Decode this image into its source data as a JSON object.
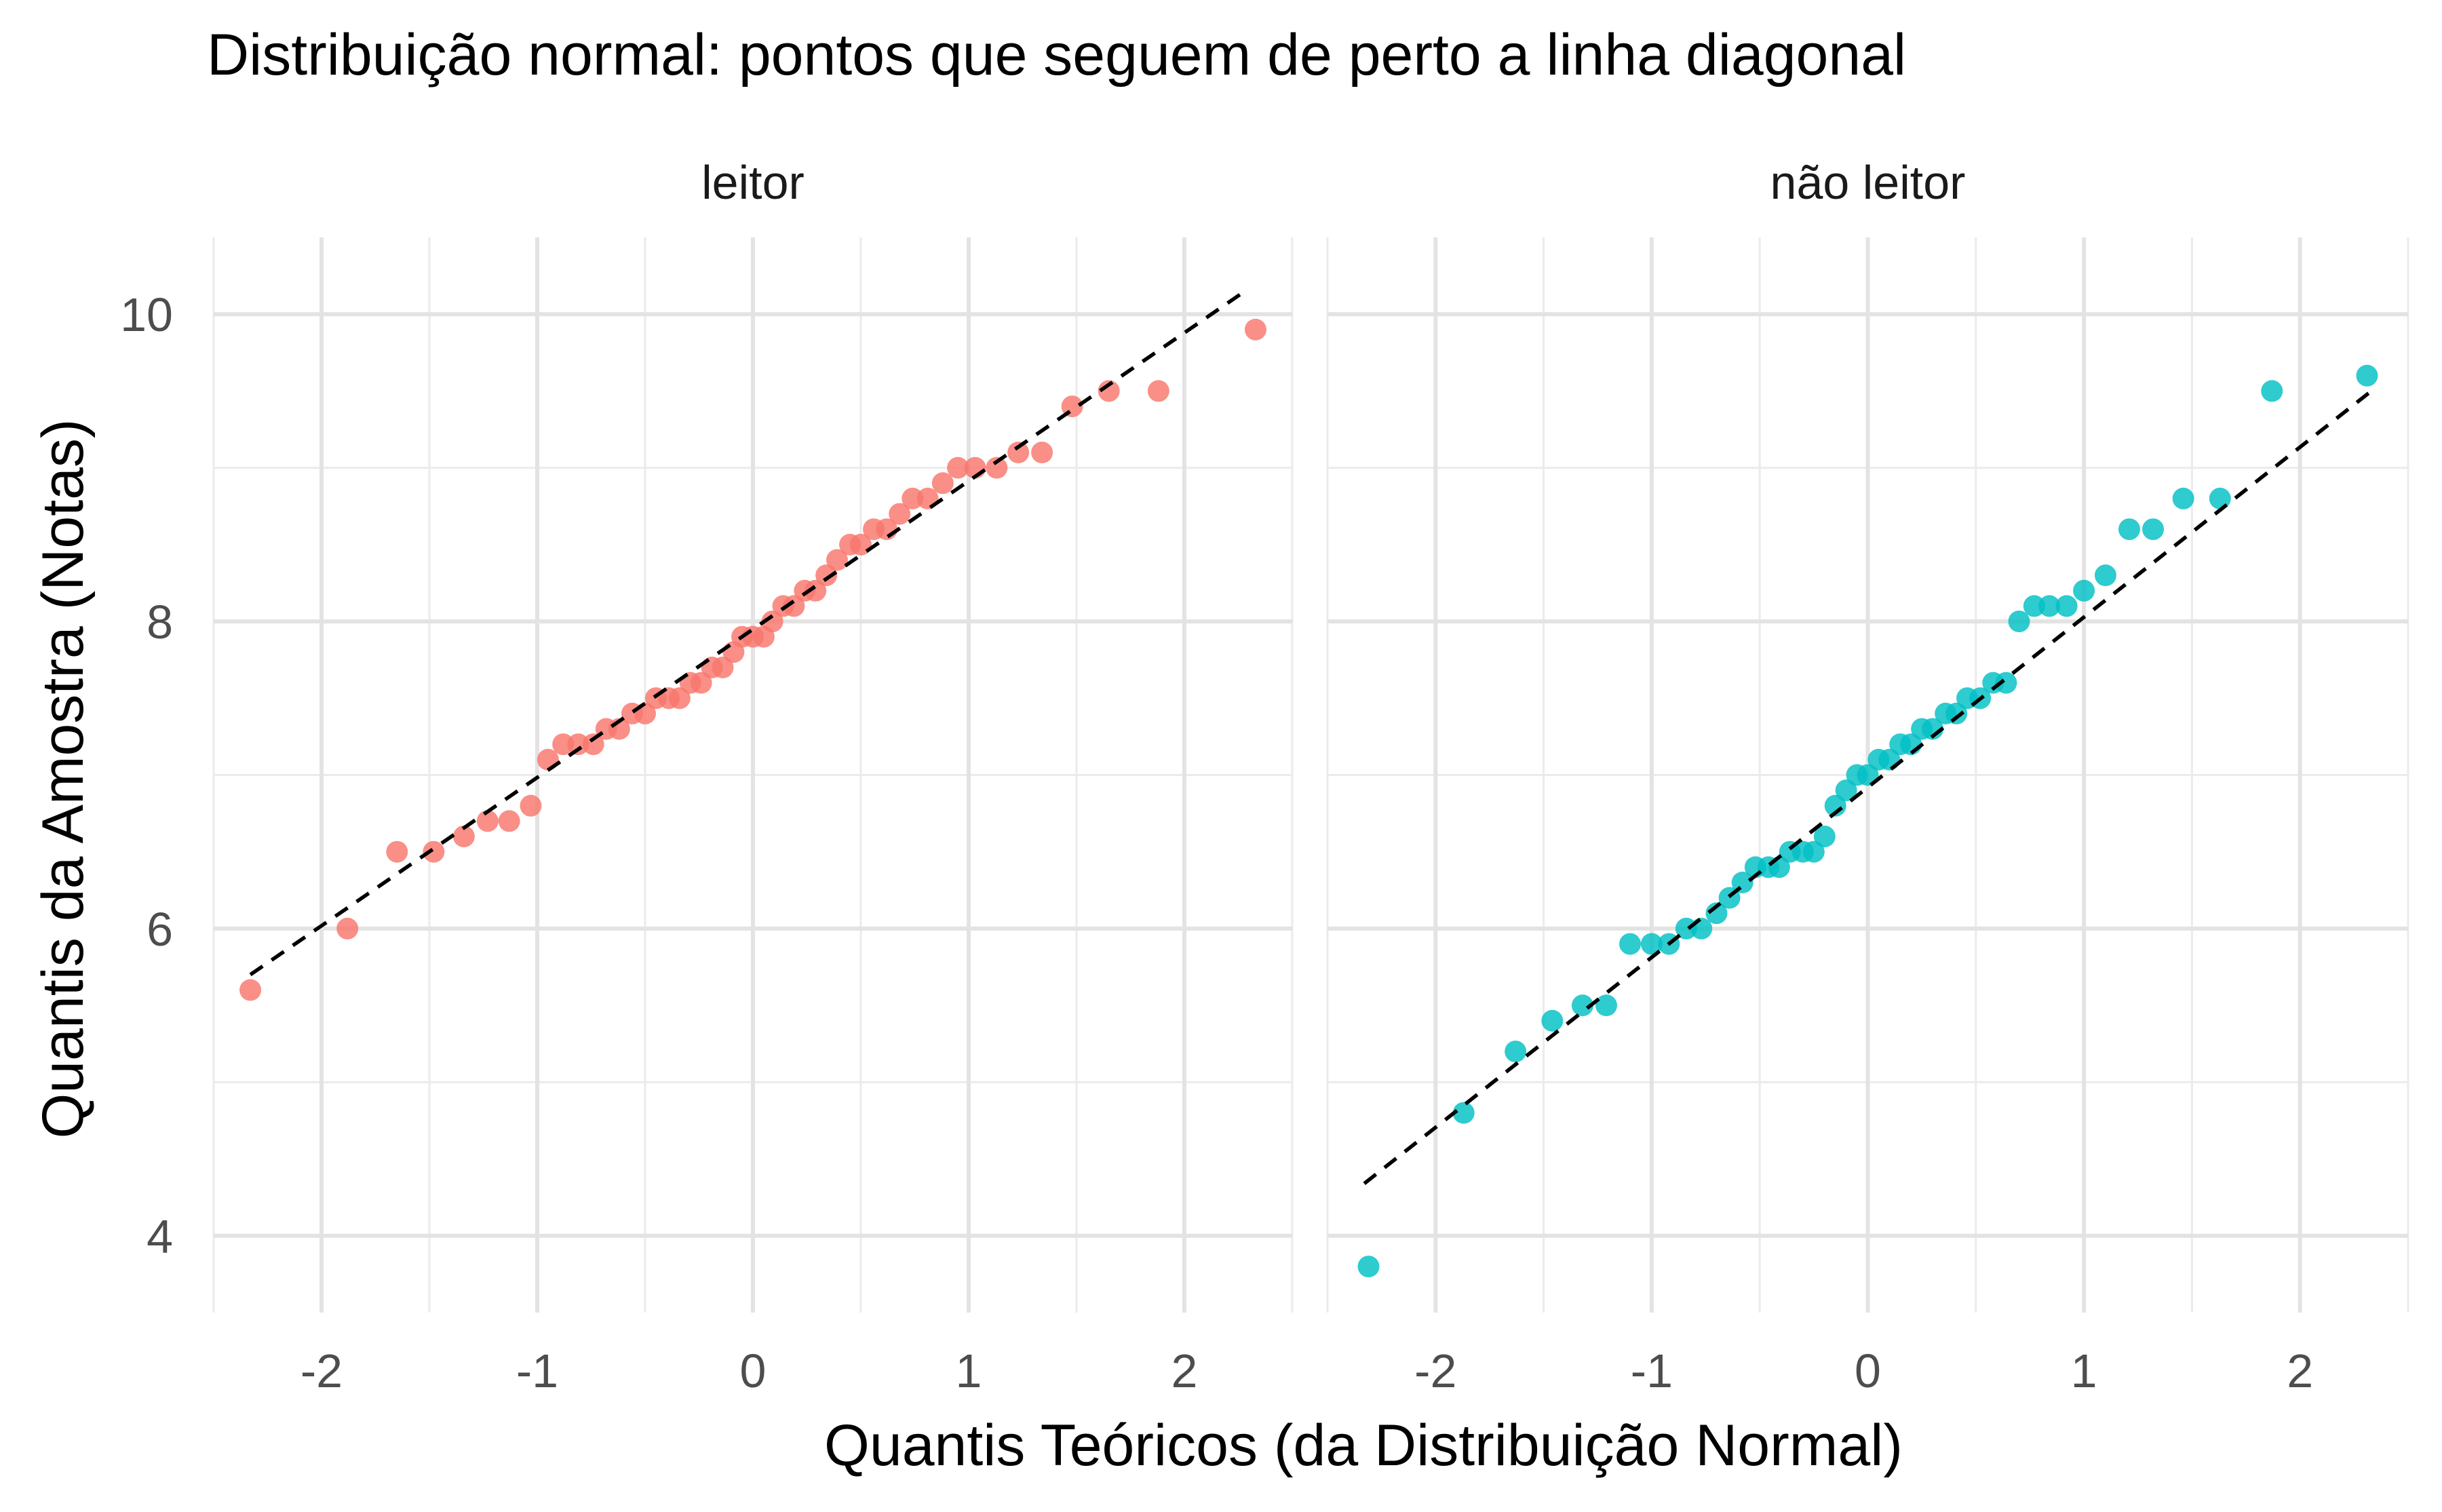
{
  "chart_data": {
    "type": "scatter",
    "title": "Distribuição normal: pontos que seguem de perto a linha diagonal",
    "xlabel": "Quantis Teóricos (da Distribuição Normal)",
    "ylabel": "Quantis da Amostra (Notas)",
    "xlim": [
      -2.5,
      2.5
    ],
    "ylim": [
      3.5,
      10.5
    ],
    "x_ticks": [
      -2,
      -1,
      0,
      1,
      2
    ],
    "x_tick_labels": [
      "-2",
      "-1",
      "0",
      "1",
      "2"
    ],
    "y_ticks": [
      4,
      6,
      8,
      10
    ],
    "y_tick_labels": [
      "4",
      "6",
      "8",
      "10"
    ],
    "grid": true,
    "legend": "none",
    "reference_line_style": "dashed",
    "panels": [
      {
        "name": "leitor",
        "color": "#F8766D",
        "line": {
          "x": [
            -2.33,
            2.26
          ],
          "y": [
            5.7,
            10.13
          ]
        },
        "points": [
          [
            -2.33,
            5.6
          ],
          [
            -1.88,
            6.0
          ],
          [
            -1.65,
            6.5
          ],
          [
            -1.48,
            6.5
          ],
          [
            -1.34,
            6.6
          ],
          [
            -1.23,
            6.7
          ],
          [
            -1.13,
            6.7
          ],
          [
            -1.03,
            6.8
          ],
          [
            -0.95,
            7.1
          ],
          [
            -0.88,
            7.2
          ],
          [
            -0.81,
            7.2
          ],
          [
            -0.74,
            7.2
          ],
          [
            -0.68,
            7.3
          ],
          [
            -0.62,
            7.3
          ],
          [
            -0.56,
            7.4
          ],
          [
            -0.5,
            7.4
          ],
          [
            -0.45,
            7.5
          ],
          [
            -0.39,
            7.5
          ],
          [
            -0.34,
            7.5
          ],
          [
            -0.29,
            7.6
          ],
          [
            -0.24,
            7.6
          ],
          [
            -0.19,
            7.7
          ],
          [
            -0.14,
            7.7
          ],
          [
            -0.09,
            7.8
          ],
          [
            -0.05,
            7.9
          ],
          [
            0.0,
            7.9
          ],
          [
            0.05,
            7.9
          ],
          [
            0.09,
            8.0
          ],
          [
            0.14,
            8.1
          ],
          [
            0.19,
            8.1
          ],
          [
            0.24,
            8.2
          ],
          [
            0.29,
            8.2
          ],
          [
            0.34,
            8.3
          ],
          [
            0.39,
            8.4
          ],
          [
            0.45,
            8.5
          ],
          [
            0.5,
            8.5
          ],
          [
            0.56,
            8.6
          ],
          [
            0.62,
            8.6
          ],
          [
            0.68,
            8.7
          ],
          [
            0.74,
            8.8
          ],
          [
            0.81,
            8.8
          ],
          [
            0.88,
            8.9
          ],
          [
            0.95,
            9.0
          ],
          [
            1.03,
            9.0
          ],
          [
            1.13,
            9.0
          ],
          [
            1.23,
            9.1
          ],
          [
            1.34,
            9.1
          ],
          [
            1.48,
            9.4
          ],
          [
            1.65,
            9.5
          ],
          [
            1.88,
            9.5
          ],
          [
            2.33,
            9.9
          ]
        ]
      },
      {
        "name": "não leitor",
        "color": "#00BFC4",
        "line": {
          "x": [
            -2.33,
            2.33
          ],
          "y": [
            4.34,
            9.5
          ]
        },
        "points": [
          [
            -2.31,
            3.8
          ],
          [
            -1.87,
            4.8
          ],
          [
            -1.63,
            5.2
          ],
          [
            -1.46,
            5.4
          ],
          [
            -1.32,
            5.5
          ],
          [
            -1.21,
            5.5
          ],
          [
            -1.1,
            5.9
          ],
          [
            -1.0,
            5.9
          ],
          [
            -0.92,
            5.9
          ],
          [
            -0.84,
            6.0
          ],
          [
            -0.77,
            6.0
          ],
          [
            -0.7,
            6.1
          ],
          [
            -0.64,
            6.2
          ],
          [
            -0.58,
            6.3
          ],
          [
            -0.52,
            6.4
          ],
          [
            -0.46,
            6.4
          ],
          [
            -0.41,
            6.4
          ],
          [
            -0.36,
            6.5
          ],
          [
            -0.3,
            6.5
          ],
          [
            -0.25,
            6.5
          ],
          [
            -0.2,
            6.6
          ],
          [
            -0.15,
            6.8
          ],
          [
            -0.1,
            6.9
          ],
          [
            -0.05,
            7.0
          ],
          [
            0.0,
            7.0
          ],
          [
            0.05,
            7.1
          ],
          [
            0.1,
            7.1
          ],
          [
            0.15,
            7.2
          ],
          [
            0.2,
            7.2
          ],
          [
            0.25,
            7.3
          ],
          [
            0.3,
            7.3
          ],
          [
            0.36,
            7.4
          ],
          [
            0.41,
            7.4
          ],
          [
            0.46,
            7.5
          ],
          [
            0.52,
            7.5
          ],
          [
            0.58,
            7.6
          ],
          [
            0.64,
            7.6
          ],
          [
            0.7,
            8.0
          ],
          [
            0.77,
            8.1
          ],
          [
            0.84,
            8.1
          ],
          [
            0.92,
            8.1
          ],
          [
            1.0,
            8.2
          ],
          [
            1.1,
            8.3
          ],
          [
            1.21,
            8.6
          ],
          [
            1.32,
            8.6
          ],
          [
            1.46,
            8.8
          ],
          [
            1.63,
            8.8
          ],
          [
            1.87,
            9.5
          ],
          [
            2.31,
            9.6
          ]
        ]
      }
    ]
  }
}
